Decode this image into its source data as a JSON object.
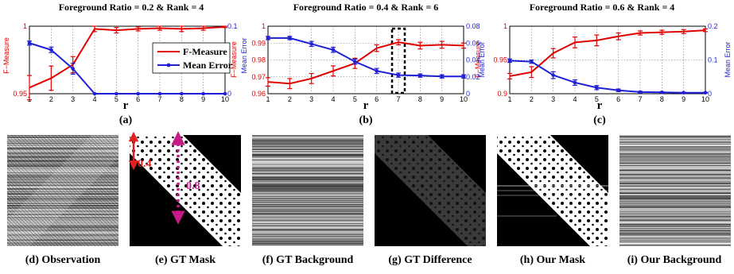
{
  "chart_data": [
    {
      "type": "line",
      "title": "Foreground Ratio = 0.2 & Rank = 4",
      "subcaption": "(a)",
      "xlabel": "r",
      "ylabel_left": "F−Measure",
      "ylabel_right": "Mean Error",
      "x": [
        1,
        2,
        3,
        4,
        5,
        6,
        7,
        8,
        9,
        10
      ],
      "xlim": [
        1,
        10
      ],
      "ylim_left": [
        0.95,
        1.0
      ],
      "ylim_right": [
        0,
        0.1
      ],
      "yticks_left": [
        "0.95",
        "1"
      ],
      "yticks_right": [
        "0",
        "0.1"
      ],
      "legend": [
        "F-Measure",
        "Mean Error"
      ],
      "legend_position": "center-right",
      "grid": true,
      "series": [
        {
          "name": "F-Measure",
          "axis": "left",
          "color": "#e00000",
          "values": [
            0.9545,
            0.9615,
            0.9715,
            0.998,
            0.997,
            0.998,
            0.9985,
            0.998,
            0.9985,
            0.9995
          ],
          "errors": [
            0.009,
            0.009,
            0.006,
            0.002,
            0.002,
            0.0015,
            0.0015,
            0.002,
            0.0015,
            0.0005
          ]
        },
        {
          "name": "Mean Error",
          "axis": "right",
          "color": "#1f1fd8",
          "values": [
            0.075,
            0.065,
            0.037,
            0.0,
            0.0,
            0.0,
            0.0,
            0.0,
            0.0,
            0.0
          ],
          "errors": [
            0.003,
            0.004,
            0.008,
            0.0,
            0.0,
            0.0,
            0.0,
            0.0,
            0.0,
            0.0
          ]
        }
      ]
    },
    {
      "type": "line",
      "title": "Foreground Ratio = 0.4 & Rank = 6",
      "subcaption": "(b)",
      "xlabel": "r",
      "ylabel_left": "F−Measure",
      "ylabel_right": "Mean Error",
      "x": [
        1,
        2,
        3,
        4,
        5,
        6,
        7,
        8,
        9,
        10
      ],
      "xlim": [
        1,
        10
      ],
      "ylim_left": [
        0.96,
        1.0
      ],
      "ylim_right": [
        0,
        0.08
      ],
      "yticks_left": [
        "0.96",
        "0.97",
        "0.98",
        "0.99",
        "1"
      ],
      "yticks_right": [
        "0",
        "0.02",
        "0.04",
        "0.06",
        "0.08"
      ],
      "grid": true,
      "highlight_x": 7,
      "series": [
        {
          "name": "F-Measure",
          "axis": "left",
          "color": "#e00000",
          "values": [
            0.967,
            0.966,
            0.969,
            0.9735,
            0.978,
            0.987,
            0.9905,
            0.9885,
            0.989,
            0.9885
          ],
          "errors": [
            0.0025,
            0.003,
            0.003,
            0.003,
            0.003,
            0.002,
            0.0015,
            0.002,
            0.002,
            0.0015
          ]
        },
        {
          "name": "Mean Error",
          "axis": "right",
          "color": "#1f1fd8",
          "values": [
            0.066,
            0.066,
            0.059,
            0.052,
            0.038,
            0.027,
            0.022,
            0.0215,
            0.0205,
            0.0205
          ],
          "errors": [
            0.002,
            0.002,
            0.003,
            0.003,
            0.003,
            0.003,
            0.0025,
            0.002,
            0.002,
            0.002
          ]
        }
      ]
    },
    {
      "type": "line",
      "title": "Foreground Ratio = 0.6 & Rank = 4",
      "subcaption": "(c)",
      "xlabel": "r",
      "ylabel_left": "F−Measure",
      "ylabel_right": "Mean Error",
      "x": [
        1,
        2,
        3,
        4,
        5,
        6,
        7,
        8,
        9,
        10
      ],
      "xlim": [
        1,
        10
      ],
      "ylim_left": [
        0.9,
        1.0
      ],
      "ylim_right": [
        0,
        0.2
      ],
      "yticks_left": [
        "0.9",
        "0.95",
        "1"
      ],
      "yticks_right": [
        "0",
        "0.1",
        "0.2"
      ],
      "grid": true,
      "series": [
        {
          "name": "F-Measure",
          "axis": "left",
          "color": "#e00000",
          "values": [
            0.926,
            0.932,
            0.96,
            0.976,
            0.979,
            0.985,
            0.99,
            0.991,
            0.992,
            0.994
          ],
          "errors": [
            0.004,
            0.008,
            0.007,
            0.008,
            0.008,
            0.005,
            0.003,
            0.003,
            0.003,
            0.002
          ]
        },
        {
          "name": "Mean Error",
          "axis": "right",
          "color": "#1f1fd8",
          "values": [
            0.098,
            0.095,
            0.055,
            0.033,
            0.018,
            0.01,
            0.005,
            0.004,
            0.003,
            0.003
          ],
          "errors": [
            0.005,
            0.005,
            0.01,
            0.008,
            0.006,
            0.004,
            0.002,
            0.002,
            0.001,
            0.001
          ]
        }
      ]
    }
  ],
  "colors": {
    "f_measure": "#e00000",
    "mean_error": "#1f1fd8",
    "arrow_red": "#e02020",
    "arrow_magenta": "#c81a86"
  },
  "annotations": {
    "arrow_short": "0.4",
    "arrow_long": "0.8"
  },
  "images": [
    {
      "caption": "(d) Observation"
    },
    {
      "caption": "(e) GT Mask"
    },
    {
      "caption": "(f) GT Background"
    },
    {
      "caption": "(g) GT Difference"
    },
    {
      "caption": "(h) Our Mask"
    },
    {
      "caption": "(i) Our Background"
    }
  ]
}
